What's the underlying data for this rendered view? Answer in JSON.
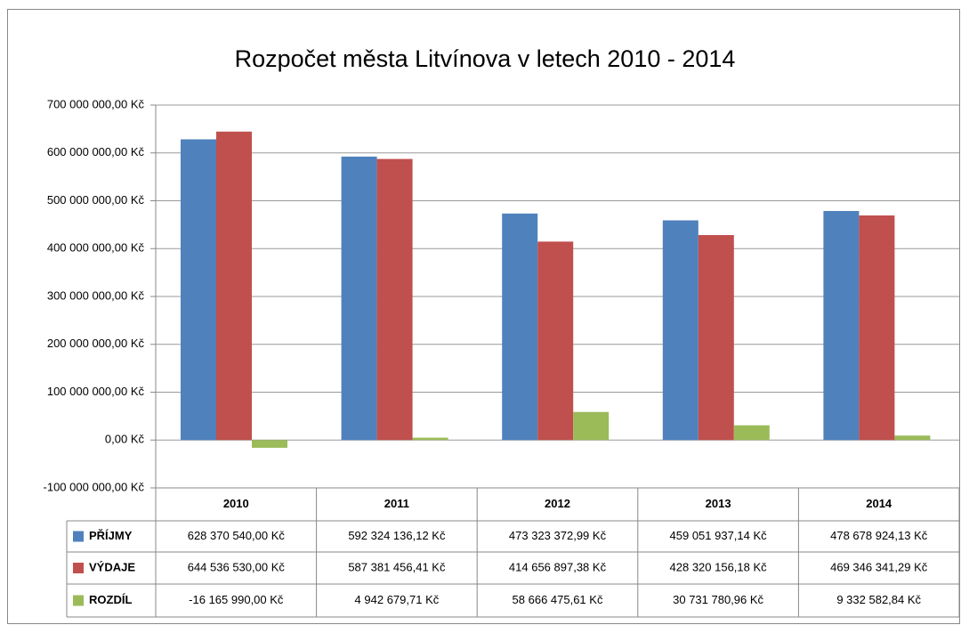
{
  "chart_data": {
    "type": "bar",
    "title": "Rozpočet města Litvínova v letech 2010 - 2014",
    "categories": [
      "2010",
      "2011",
      "2012",
      "2013",
      "2014"
    ],
    "series": [
      {
        "name": "PŘÍJMY",
        "color": "#4f81bd",
        "values": [
          628370540.0,
          592324136.12,
          473323372.99,
          459051937.14,
          478678924.13
        ],
        "value_labels": [
          "628 370 540,00 Kč",
          "592 324 136,12 Kč",
          "473 323 372,99 Kč",
          "459 051 937,14 Kč",
          "478 678 924,13 Kč"
        ]
      },
      {
        "name": "VÝDAJE",
        "color": "#c0504d",
        "values": [
          644536530.0,
          587381456.41,
          414656897.38,
          428320156.18,
          469346341.29
        ],
        "value_labels": [
          "644 536 530,00 Kč",
          "587 381 456,41 Kč",
          "414 656 897,38 Kč",
          "428 320 156,18 Kč",
          "469 346 341,29 Kč"
        ]
      },
      {
        "name": "ROZDÍL",
        "color": "#9bbb59",
        "values": [
          -16165990.0,
          4942679.71,
          58666475.61,
          30731780.96,
          9332582.84
        ],
        "value_labels": [
          "-16 165 990,00 Kč",
          "4 942 679,71 Kč",
          "58 666 475,61 Kč",
          "30 731 780,96 Kč",
          "9 332 582,84 Kč"
        ]
      }
    ],
    "ylim": [
      -100000000,
      700000000
    ],
    "yticks": [
      {
        "value": -100000000,
        "label": "-100 000 000,00 Kč"
      },
      {
        "value": 0,
        "label": "0,00 Kč"
      },
      {
        "value": 100000000,
        "label": "100 000 000,00 Kč"
      },
      {
        "value": 200000000,
        "label": "200 000 000,00 Kč"
      },
      {
        "value": 300000000,
        "label": "300 000 000,00 Kč"
      },
      {
        "value": 400000000,
        "label": "400 000 000,00 Kč"
      },
      {
        "value": 500000000,
        "label": "500 000 000,00 Kč"
      },
      {
        "value": 600000000,
        "label": "600 000 000,00 Kč"
      },
      {
        "value": 700000000,
        "label": "700 000 000,00 Kč"
      }
    ],
    "grid": true
  }
}
